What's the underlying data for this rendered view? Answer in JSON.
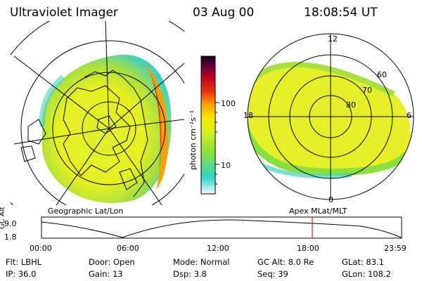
{
  "header": {
    "title": "Ultraviolet Imager",
    "date": "03 Aug 00",
    "time": "18:08:54 UT"
  },
  "left_map": {
    "caption": "Geographic Lat/Lon"
  },
  "right_map": {
    "caption": "Apex MLat/MLT",
    "mlt_labels": [
      "12",
      "18",
      "6",
      "0"
    ],
    "lat_labels": [
      "60",
      "70",
      "80"
    ]
  },
  "colorbar": {
    "unit_label": "photon cm⁻²s⁻¹",
    "ticks": [
      "100",
      "10"
    ],
    "colors": [
      "#e8f4f4",
      "#2dd4cc",
      "#88e040",
      "#d8f020",
      "#f8e800",
      "#f8a000",
      "#e83010",
      "#c00020",
      "#600040",
      "#100018"
    ]
  },
  "timeline": {
    "axis_label": "GC Alt",
    "y_max": "9.0",
    "y_min": "1.8",
    "x_ticks": [
      "00:00",
      "06:00",
      "12:00",
      "18:00",
      "23:59"
    ],
    "current_time_marker": "18:08",
    "marker_color": "#c00000"
  },
  "info": {
    "row1": [
      {
        "key": "Flt:",
        "value": "LBHL"
      },
      {
        "key": "Door:",
        "value": "Open"
      },
      {
        "key": "Mode:",
        "value": "Normal"
      },
      {
        "key": "GC Alt:",
        "value": "8.0 Re"
      },
      {
        "key": "GLat:",
        "value": "83.1"
      }
    ],
    "row2": [
      {
        "key": "IP:",
        "value": "36.0"
      },
      {
        "key": "Gain:",
        "value": "13"
      },
      {
        "key": "Dsp:",
        "value": "3.8"
      },
      {
        "key": "Seq:",
        "value": "39"
      },
      {
        "key": "GLon:",
        "value": "108.2"
      }
    ]
  }
}
